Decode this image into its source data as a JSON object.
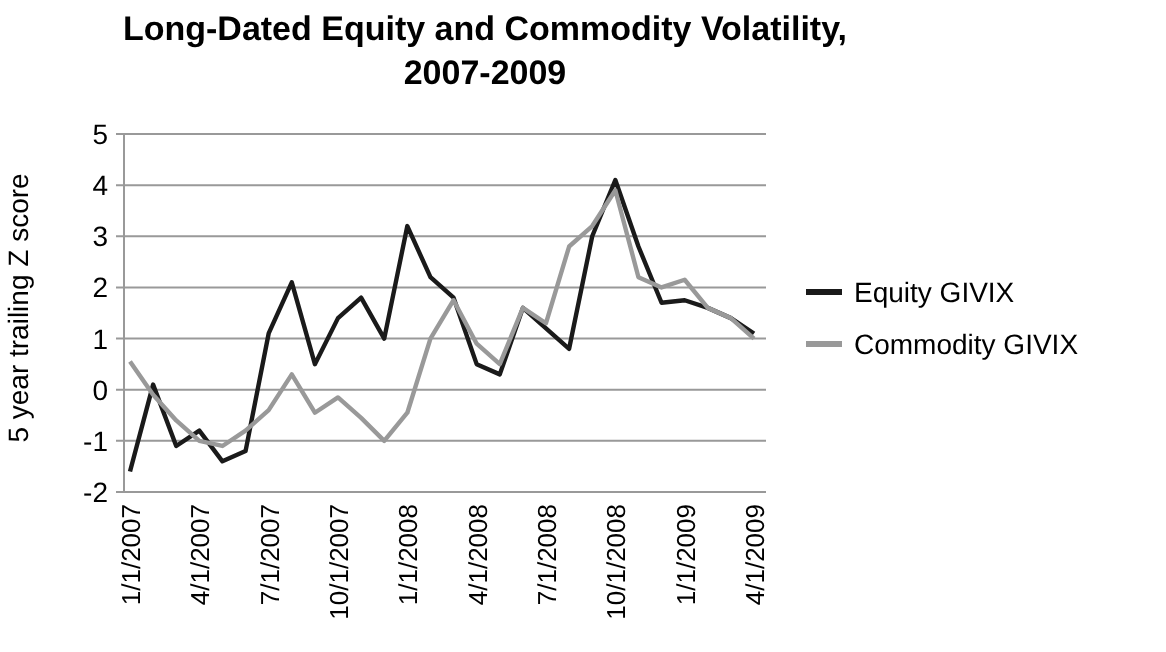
{
  "chart_data": {
    "type": "line",
    "title": "Long-Dated Equity and Commodity Volatility, 2007-2009",
    "ylabel": "5 year trailing Z score",
    "categories": [
      "1/1/2007",
      null,
      null,
      "4/1/2007",
      null,
      null,
      "7/1/2007",
      null,
      null,
      "10/1/2007",
      null,
      null,
      "1/1/2008",
      null,
      null,
      "4/1/2008",
      null,
      null,
      "7/1/2008",
      null,
      null,
      "10/1/2008",
      null,
      null,
      "1/1/2009",
      null,
      null,
      "4/1/2009"
    ],
    "series": [
      {
        "name": "Equity GIVIX",
        "color": "#1a1a1a",
        "values": [
          -1.6,
          0.1,
          -1.1,
          -0.8,
          -1.4,
          -1.2,
          1.1,
          2.1,
          0.5,
          1.4,
          1.8,
          1.0,
          3.2,
          2.2,
          1.8,
          0.5,
          0.3,
          1.6,
          1.2,
          0.8,
          3.0,
          4.1,
          2.8,
          1.7,
          1.75,
          1.6,
          1.4,
          1.1
        ]
      },
      {
        "name": "Commodity GIVIX",
        "color": "#999999",
        "values": [
          0.55,
          -0.1,
          -0.6,
          -1.0,
          -1.1,
          -0.8,
          -0.4,
          0.3,
          -0.45,
          -0.15,
          -0.55,
          -1.0,
          -0.45,
          1.0,
          1.75,
          0.9,
          0.5,
          1.6,
          1.3,
          2.8,
          3.2,
          3.9,
          2.2,
          2.0,
          2.15,
          1.6,
          1.4,
          1.0
        ]
      }
    ],
    "ylim": [
      -2,
      5
    ],
    "yticks": [
      -2,
      -1,
      0,
      1,
      2,
      3,
      4,
      5
    ],
    "grid": "y",
    "legend": "right",
    "line_style": "solid",
    "marker": "none"
  }
}
